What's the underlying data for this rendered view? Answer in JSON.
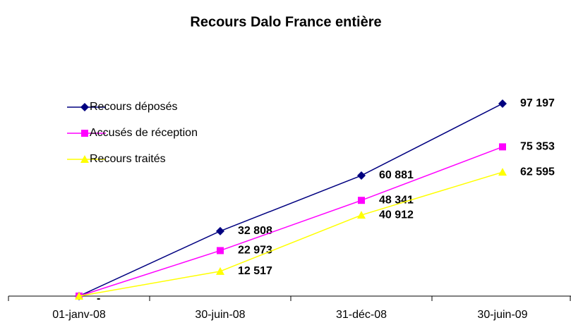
{
  "chart_data": {
    "type": "line",
    "title": "Recours Dalo France entière",
    "categories": [
      "01-janv-08",
      "30-juin-08",
      "31-déc-08",
      "30-juin-09"
    ],
    "series": [
      {
        "name": "Recours déposés",
        "color": "#000080",
        "marker": "diamond",
        "values": [
          0,
          32808,
          60881,
          97197
        ],
        "value_labels": [
          "-",
          "32 808",
          "60 881",
          "97 197"
        ]
      },
      {
        "name": "Accusés de réception",
        "color": "#ff00ff",
        "marker": "square",
        "values": [
          0,
          22973,
          48341,
          75353
        ],
        "value_labels": [
          null,
          "22 973",
          "48 341",
          "75 353"
        ]
      },
      {
        "name": "Recours traités",
        "color": "#ffff00",
        "marker": "triangle",
        "values": [
          0,
          12517,
          40912,
          62595
        ],
        "value_labels": [
          null,
          "12 517",
          "40 912",
          "62 595"
        ]
      }
    ],
    "ylim": [
      0,
      110000
    ],
    "legend": "top-left"
  }
}
